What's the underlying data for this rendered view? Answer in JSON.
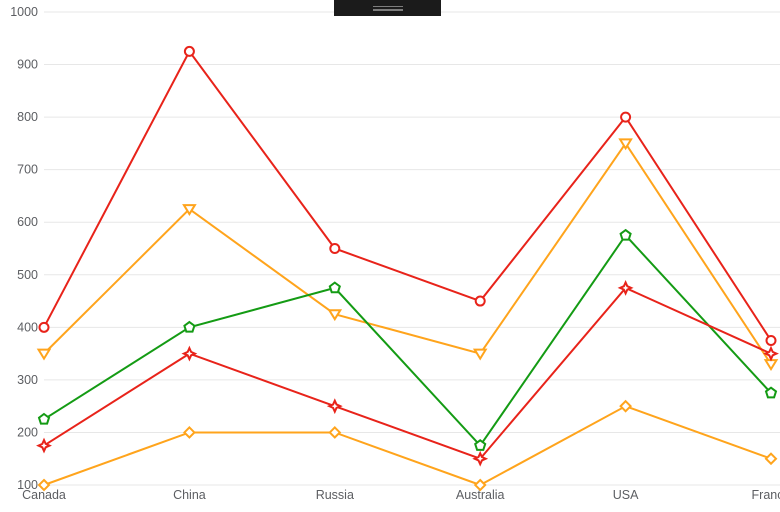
{
  "page": {
    "background_color": "#ffffff"
  },
  "toolbar": {
    "drag_handle_color": "#1b1b1b",
    "drag_handle_grip_color": "#7d7d7d"
  },
  "chart_data": {
    "type": "line",
    "title": "",
    "categories": [
      "Canada",
      "China",
      "Russia",
      "Australia",
      "USA",
      "France"
    ],
    "series": [
      {
        "name": "red-circle-series",
        "color": "#e8231a",
        "marker": "circle",
        "values": [
          400,
          925,
          550,
          450,
          800,
          375
        ]
      },
      {
        "name": "orange-triangle-series",
        "color": "#ffa41c",
        "marker": "triangle-down",
        "values": [
          350,
          625,
          425,
          350,
          750,
          330
        ]
      },
      {
        "name": "green-pentagon-series",
        "color": "#149b14",
        "marker": "pentagon",
        "values": [
          225,
          400,
          475,
          175,
          575,
          275
        ]
      },
      {
        "name": "red-star-series",
        "color": "#e8231a",
        "marker": "star4",
        "values": [
          175,
          350,
          250,
          150,
          475,
          350
        ]
      },
      {
        "name": "orange-diamond-series",
        "color": "#ffa41c",
        "marker": "diamond",
        "values": [
          100,
          200,
          200,
          100,
          250,
          150
        ]
      }
    ],
    "ylim": [
      100,
      1000
    ],
    "ytick_step": 100,
    "ytick_labels": [
      "100",
      "200",
      "300",
      "400",
      "500",
      "600",
      "700",
      "800",
      "900",
      "1000"
    ],
    "xlabel": "",
    "ylabel": "",
    "grid": true,
    "legend": "none",
    "gridline_color": "#e7e7e7",
    "label_color": "#5c5e62"
  }
}
